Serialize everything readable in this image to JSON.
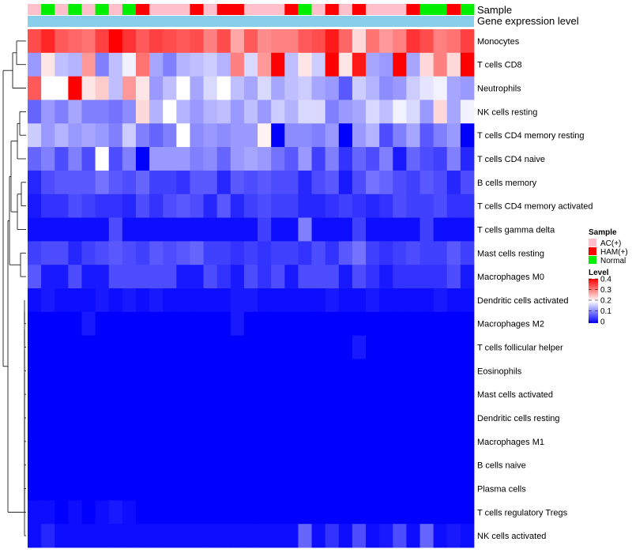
{
  "chart_data": {
    "type": "heatmap",
    "color_scale": {
      "title": "Level",
      "min": 0,
      "max": 0.4,
      "colors": [
        "#0000ff",
        "#ffffff",
        "#ff0000"
      ],
      "ticks": [
        "0.4",
        "0.3",
        "0.2",
        "0.1",
        "0"
      ]
    },
    "column_annotations": [
      {
        "name": "Sample",
        "values": [
          "AC(+)",
          "Normal",
          "AC(+)",
          "Normal",
          "AC(+)",
          "Normal",
          "AC(+)",
          "Normal",
          "HAM(+)",
          "AC(+)",
          "AC(+)",
          "AC(+)",
          "HAM(+)",
          "AC(+)",
          "HAM(+)",
          "HAM(+)",
          "AC(+)",
          "AC(+)",
          "AC(+)",
          "HAM(+)",
          "Normal",
          "AC(+)",
          "HAM(+)",
          "AC(+)",
          "HAM(+)",
          "AC(+)",
          "AC(+)",
          "AC(+)",
          "HAM(+)",
          "Normal",
          "Normal",
          "HAM(+)",
          "Normal"
        ]
      },
      {
        "name": "Gene expression level",
        "color": "#87ceeb"
      }
    ],
    "legend": {
      "title": "Sample",
      "entries": [
        {
          "label": "AC(+)",
          "color": "#ffc0cb"
        },
        {
          "label": "HAM(+)",
          "color": "#ff0000"
        },
        {
          "label": "Normal",
          "color": "#00ee00"
        }
      ]
    },
    "rows": [
      "Monocytes",
      "T cells CD8",
      "Neutrophils",
      "NK cells resting",
      "T cells CD4 memory resting",
      "T cells CD4 naive",
      "B cells memory",
      "T cells CD4 memory activated",
      "T cells gamma delta",
      "Mast cells resting",
      "Macrophages M0",
      "Dendritic cells activated",
      "Macrophages M2",
      "T cells follicular helper",
      "Eosinophils",
      "Mast cells activated",
      "Dendritic cells resting",
      "Macrophages M1",
      "B cells naive",
      "Plasma cells",
      "T cells regulatory  Tregs",
      "NK cells activated"
    ],
    "values": [
      [
        0.34,
        0.37,
        0.33,
        0.32,
        0.31,
        0.35,
        0.4,
        0.36,
        0.33,
        0.35,
        0.34,
        0.33,
        0.34,
        0.3,
        0.34,
        0.27,
        0.33,
        0.29,
        0.3,
        0.3,
        0.33,
        0.34,
        0.38,
        0.32,
        0.23,
        0.31,
        0.28,
        0.3,
        0.36,
        0.34,
        0.3,
        0.31,
        0.35
      ],
      [
        0.12,
        0.22,
        0.15,
        0.14,
        0.28,
        0.1,
        0.15,
        0.19,
        0.31,
        0.13,
        0.1,
        0.14,
        0.15,
        0.16,
        0.14,
        0.3,
        0.17,
        0.28,
        0.4,
        0.15,
        0.22,
        0.16,
        0.4,
        0.22,
        0.38,
        0.13,
        0.12,
        0.4,
        0.13,
        0.23,
        0.3,
        0.23,
        0.4
      ],
      [
        0.33,
        0.2,
        0.2,
        0.4,
        0.22,
        0.24,
        0.15,
        0.28,
        0.22,
        0.12,
        0.15,
        0.2,
        0.13,
        0.17,
        0.2,
        0.15,
        0.13,
        0.17,
        0.13,
        0.15,
        0.16,
        0.13,
        0.12,
        0.07,
        0.16,
        0.14,
        0.11,
        0.12,
        0.16,
        0.18,
        0.19,
        0.13,
        0.12
      ],
      [
        0.08,
        0.12,
        0.1,
        0.13,
        0.1,
        0.1,
        0.09,
        0.11,
        0.23,
        0.14,
        0.2,
        0.14,
        0.12,
        0.14,
        0.15,
        0.12,
        0.15,
        0.12,
        0.16,
        0.14,
        0.17,
        0.17,
        0.1,
        0.12,
        0.13,
        0.17,
        0.15,
        0.19,
        0.17,
        0.12,
        0.23,
        0.13,
        0.19
      ],
      [
        0.16,
        0.12,
        0.14,
        0.12,
        0.13,
        0.12,
        0.1,
        0.16,
        0.1,
        0.08,
        0.1,
        0.2,
        0.11,
        0.12,
        0.11,
        0.12,
        0.12,
        0.21,
        0.0,
        0.11,
        0.11,
        0.1,
        0.12,
        0.0,
        0.12,
        0.14,
        0.06,
        0.1,
        0.13,
        0.07,
        0.1,
        0.12,
        0.0
      ],
      [
        0.08,
        0.1,
        0.06,
        0.1,
        0.06,
        0.2,
        0.06,
        0.1,
        0.0,
        0.12,
        0.12,
        0.12,
        0.1,
        0.11,
        0.08,
        0.12,
        0.13,
        0.12,
        0.09,
        0.07,
        0.12,
        0.05,
        0.1,
        0.04,
        0.08,
        0.06,
        0.1,
        0.02,
        0.08,
        0.06,
        0.05,
        0.1,
        0.03
      ],
      [
        0.03,
        0.06,
        0.07,
        0.07,
        0.07,
        0.09,
        0.07,
        0.06,
        0.08,
        0.05,
        0.05,
        0.04,
        0.07,
        0.07,
        0.03,
        0.07,
        0.06,
        0.07,
        0.06,
        0.06,
        0.03,
        0.06,
        0.07,
        0.02,
        0.06,
        0.09,
        0.08,
        0.06,
        0.05,
        0.07,
        0.06,
        0.03,
        0.06
      ],
      [
        0.02,
        0.04,
        0.04,
        0.06,
        0.05,
        0.04,
        0.04,
        0.03,
        0.06,
        0.04,
        0.06,
        0.07,
        0.06,
        0.03,
        0.07,
        0.03,
        0.05,
        0.06,
        0.05,
        0.05,
        0.03,
        0.03,
        0.04,
        0.05,
        0.04,
        0.03,
        0.04,
        0.06,
        0.05,
        0.05,
        0.06,
        0.04,
        0.04
      ],
      [
        0.01,
        0.01,
        0.01,
        0.01,
        0.01,
        0.01,
        0.06,
        0.01,
        0.01,
        0.01,
        0.01,
        0.01,
        0.01,
        0.01,
        0.01,
        0.01,
        0.01,
        0.05,
        0.01,
        0.01,
        0.1,
        0.01,
        0.01,
        0.01,
        0.05,
        0.01,
        0.01,
        0.01,
        0.01,
        0.05,
        0.01,
        0.01,
        0.01
      ],
      [
        0.05,
        0.06,
        0.06,
        0.03,
        0.05,
        0.06,
        0.07,
        0.06,
        0.05,
        0.07,
        0.06,
        0.07,
        0.08,
        0.05,
        0.05,
        0.04,
        0.05,
        0.04,
        0.05,
        0.05,
        0.04,
        0.06,
        0.04,
        0.07,
        0.09,
        0.05,
        0.04,
        0.05,
        0.06,
        0.05,
        0.05,
        0.07,
        0.05
      ],
      [
        0.07,
        0.02,
        0.02,
        0.06,
        0.02,
        0.02,
        0.06,
        0.06,
        0.06,
        0.06,
        0.06,
        0.02,
        0.02,
        0.06,
        0.04,
        0.02,
        0.06,
        0.04,
        0.06,
        0.02,
        0.06,
        0.06,
        0.06,
        0.02,
        0.06,
        0.04,
        0.02,
        0.04,
        0.04,
        0.04,
        0.04,
        0.06,
        0.02
      ],
      [
        0.01,
        0.02,
        0.01,
        0.01,
        0.01,
        0.02,
        0.01,
        0.02,
        0.01,
        0.02,
        0.01,
        0.01,
        0.01,
        0.01,
        0.01,
        0.02,
        0.02,
        0.01,
        0.01,
        0.01,
        0.01,
        0.01,
        0.02,
        0.01,
        0.01,
        0.02,
        0.01,
        0.01,
        0.01,
        0.01,
        0.02,
        0.01,
        0.01
      ],
      [
        0.0,
        0.0,
        0.0,
        0.0,
        0.02,
        0.0,
        0.0,
        0.0,
        0.0,
        0.0,
        0.0,
        0.0,
        0.0,
        0.0,
        0.0,
        0.02,
        0.0,
        0.0,
        0.0,
        0.0,
        0.0,
        0.0,
        0.0,
        0.0,
        0.0,
        0.0,
        0.0,
        0.0,
        0.0,
        0.0,
        0.0,
        0.0,
        0.0
      ],
      [
        0.0,
        0.0,
        0.0,
        0.0,
        0.0,
        0.0,
        0.0,
        0.0,
        0.0,
        0.0,
        0.0,
        0.0,
        0.0,
        0.0,
        0.0,
        0.0,
        0.0,
        0.0,
        0.0,
        0.0,
        0.0,
        0.0,
        0.0,
        0.0,
        0.02,
        0.0,
        0.0,
        0.0,
        0.0,
        0.0,
        0.0,
        0.0,
        0.0
      ],
      [
        0,
        0,
        0,
        0,
        0,
        0,
        0,
        0,
        0,
        0,
        0,
        0,
        0,
        0,
        0,
        0,
        0,
        0,
        0,
        0,
        0,
        0,
        0,
        0,
        0,
        0,
        0,
        0,
        0,
        0,
        0,
        0,
        0
      ],
      [
        0,
        0,
        0,
        0,
        0,
        0,
        0,
        0,
        0,
        0,
        0,
        0,
        0,
        0,
        0,
        0,
        0,
        0,
        0,
        0,
        0,
        0,
        0,
        0,
        0,
        0,
        0,
        0,
        0,
        0,
        0,
        0,
        0
      ],
      [
        0,
        0,
        0,
        0,
        0,
        0,
        0,
        0,
        0,
        0,
        0,
        0,
        0,
        0,
        0,
        0,
        0,
        0,
        0,
        0,
        0,
        0,
        0,
        0,
        0,
        0,
        0,
        0,
        0,
        0,
        0,
        0,
        0
      ],
      [
        0,
        0,
        0,
        0,
        0,
        0,
        0,
        0,
        0,
        0,
        0,
        0,
        0,
        0,
        0,
        0,
        0,
        0,
        0,
        0,
        0,
        0,
        0,
        0,
        0,
        0,
        0,
        0,
        0,
        0,
        0,
        0,
        0
      ],
      [
        0,
        0,
        0,
        0,
        0,
        0,
        0,
        0,
        0,
        0,
        0,
        0,
        0,
        0,
        0,
        0,
        0,
        0,
        0,
        0,
        0,
        0,
        0,
        0,
        0,
        0,
        0,
        0,
        0,
        0,
        0,
        0,
        0
      ],
      [
        0,
        0,
        0,
        0,
        0,
        0,
        0,
        0,
        0,
        0,
        0,
        0,
        0,
        0,
        0,
        0,
        0,
        0,
        0,
        0,
        0,
        0,
        0,
        0,
        0,
        0,
        0,
        0,
        0,
        0,
        0,
        0,
        0
      ],
      [
        0.01,
        0.01,
        0.0,
        0.01,
        0.0,
        0.01,
        0.02,
        0.01,
        0.0,
        0.0,
        0.0,
        0.0,
        0.0,
        0.0,
        0.0,
        0.0,
        0.0,
        0.0,
        0.0,
        0.0,
        0.0,
        0.0,
        0.0,
        0.0,
        0.0,
        0.0,
        0.0,
        0.0,
        0.0,
        0.0,
        0.0,
        0.0,
        0.0
      ],
      [
        0.01,
        0.03,
        0.01,
        0.01,
        0.01,
        0.01,
        0.01,
        0.01,
        0.01,
        0.01,
        0.01,
        0.01,
        0.01,
        0.01,
        0.01,
        0.01,
        0.01,
        0.01,
        0.01,
        0.01,
        0.08,
        0.01,
        0.04,
        0.01,
        0.06,
        0.01,
        0.02,
        0.06,
        0.01,
        0.08,
        0.01,
        0.02,
        0.01
      ]
    ]
  }
}
